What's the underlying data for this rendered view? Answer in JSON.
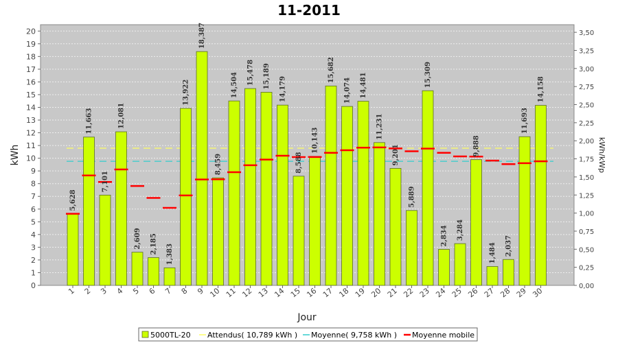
{
  "chart_data": {
    "type": "bar",
    "title": "11-2011",
    "xlabel": "Jour",
    "ylabel": "kWh",
    "y2label": "kWh/kWp",
    "ylim": [
      0,
      20.5
    ],
    "y_ticks": [
      "0",
      "1",
      "2",
      "3",
      "4",
      "5",
      "6",
      "7",
      "8",
      "9",
      "10",
      "11",
      "12",
      "13",
      "14",
      "15",
      "16",
      "17",
      "18",
      "19",
      "20"
    ],
    "y2_ticks": [
      "0,00",
      "0,25",
      "0,50",
      "0,75",
      "1,00",
      "1,25",
      "1,50",
      "1,75",
      "2,00",
      "2,25",
      "2,50",
      "2,75",
      "3,00",
      "3,25",
      "3,50"
    ],
    "categories": [
      "1",
      "2",
      "3",
      "4",
      "5",
      "6",
      "7",
      "8",
      "9",
      "10",
      "11",
      "12",
      "13",
      "14",
      "15",
      "16",
      "17",
      "18",
      "19",
      "20",
      "21",
      "22",
      "23",
      "24",
      "25",
      "26",
      "27",
      "28",
      "29",
      "30"
    ],
    "grid": true,
    "legend_position": "bottom",
    "series": [
      {
        "name": "5000TL-20",
        "kind": "bar",
        "color": "#ccff00",
        "values": [
          5.628,
          11.663,
          7.101,
          12.081,
          2.609,
          2.185,
          1.383,
          13.922,
          18.387,
          8.459,
          14.504,
          15.478,
          15.189,
          14.179,
          8.588,
          10.143,
          15.682,
          14.074,
          14.481,
          11.231,
          9.201,
          5.889,
          15.309,
          2.834,
          3.284,
          9.888,
          1.484,
          2.037,
          11.693,
          14.158
        ],
        "labels": [
          "5,628",
          "11,663",
          "7,101",
          "12,081",
          "2,609",
          "2,185",
          "1,383",
          "13,922",
          "18,387",
          "8,459",
          "14,504",
          "15,478",
          "15,189",
          "14,179",
          "8,588",
          "10,143",
          "15,682",
          "14,074",
          "14,481",
          "11,231",
          "9,201",
          "5,889",
          "15,309",
          "2,834",
          "3,284",
          "9,888",
          "1,484",
          "2,037",
          "11,693",
          "14,158"
        ]
      },
      {
        "name": "Attendus( 10,789 kWh )",
        "kind": "hline",
        "color": "#ffff66",
        "value": 10.789
      },
      {
        "name": "Moyenne( 9,758 kWh )",
        "kind": "hline",
        "color": "#33cccc",
        "value": 9.758
      },
      {
        "name": "Moyenne mobile",
        "kind": "marker",
        "color": "#ff0000",
        "values": [
          5.628,
          8.646,
          8.131,
          9.118,
          7.816,
          6.878,
          6.093,
          7.071,
          8.328,
          8.341,
          8.901,
          9.449,
          9.891,
          10.197,
          10.091,
          10.095,
          10.424,
          10.627,
          10.829,
          10.851,
          10.772,
          10.55,
          10.757,
          10.427,
          10.141,
          10.13,
          9.81,
          9.533,
          9.608,
          9.758
        ]
      }
    ]
  }
}
